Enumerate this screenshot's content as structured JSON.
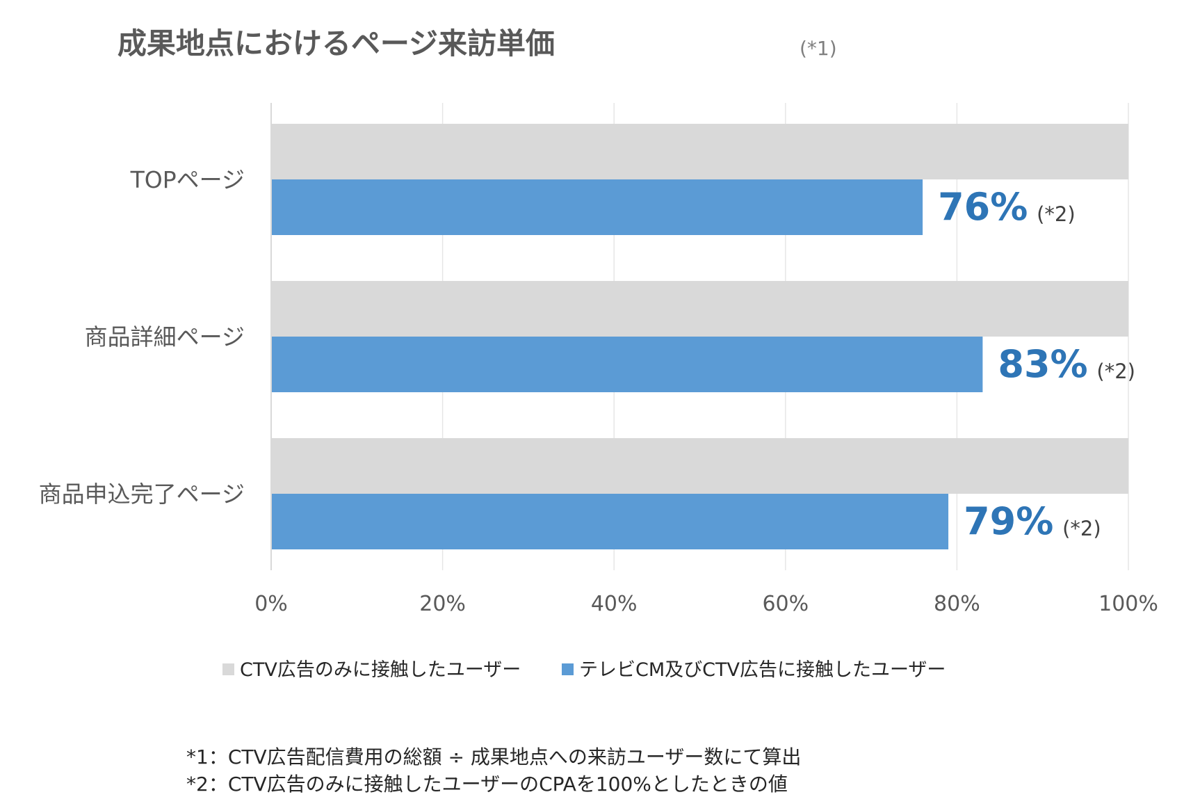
{
  "title": "成果地点におけるページ来訪単価",
  "title_note": "(*1)",
  "colors": {
    "baseline": "#d9d9d9",
    "series": "#5b9bd5",
    "value_label": "#2e75b6"
  },
  "chart_data": {
    "type": "bar",
    "orientation": "horizontal",
    "categories": [
      "TOPページ",
      "商品詳細ページ",
      "商品申込完了ページ"
    ],
    "series": [
      {
        "name": "CTV広告のみに接触したユーザー",
        "values": [
          100,
          100,
          100
        ]
      },
      {
        "name": "テレビCM及びCTV広告に接触したユーザー",
        "values": [
          76,
          83,
          79
        ]
      }
    ],
    "data_labels": [
      "76%",
      "83%",
      "79%"
    ],
    "data_label_note": "(*2)",
    "x_ticks": [
      "0%",
      "20%",
      "40%",
      "60%",
      "80%",
      "100%"
    ],
    "xlim": [
      0,
      100
    ],
    "grid": true,
    "legend_position": "bottom"
  },
  "footnotes": [
    "*1：CTV広告配信費用の総額 ÷ 成果地点への来訪ユーザー数にて算出",
    "*2：CTV広告のみに接触したユーザーのCPAを100%としたときの値"
  ]
}
